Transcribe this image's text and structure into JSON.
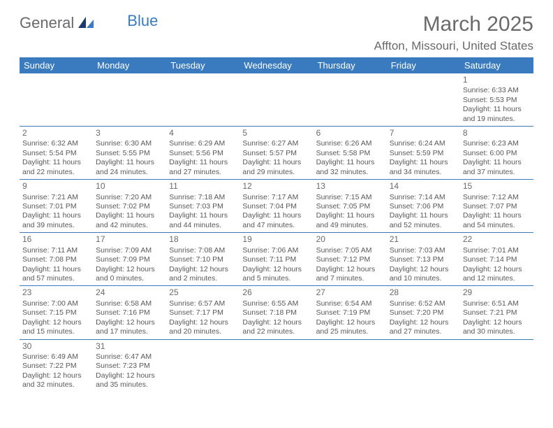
{
  "logo": {
    "part1": "General",
    "part2": "Blue"
  },
  "title": "March 2025",
  "location": "Affton, Missouri, United States",
  "weekdays": [
    "Sunday",
    "Monday",
    "Tuesday",
    "Wednesday",
    "Thursday",
    "Friday",
    "Saturday"
  ],
  "colors": {
    "header_bg": "#3a7bbf",
    "header_text": "#ffffff",
    "text": "#595959",
    "rule": "#3a7bbf"
  },
  "weeks": [
    [
      null,
      null,
      null,
      null,
      null,
      null,
      {
        "n": "1",
        "sr": "Sunrise: 6:33 AM",
        "ss": "Sunset: 5:53 PM",
        "d1": "Daylight: 11 hours",
        "d2": "and 19 minutes."
      }
    ],
    [
      {
        "n": "2",
        "sr": "Sunrise: 6:32 AM",
        "ss": "Sunset: 5:54 PM",
        "d1": "Daylight: 11 hours",
        "d2": "and 22 minutes."
      },
      {
        "n": "3",
        "sr": "Sunrise: 6:30 AM",
        "ss": "Sunset: 5:55 PM",
        "d1": "Daylight: 11 hours",
        "d2": "and 24 minutes."
      },
      {
        "n": "4",
        "sr": "Sunrise: 6:29 AM",
        "ss": "Sunset: 5:56 PM",
        "d1": "Daylight: 11 hours",
        "d2": "and 27 minutes."
      },
      {
        "n": "5",
        "sr": "Sunrise: 6:27 AM",
        "ss": "Sunset: 5:57 PM",
        "d1": "Daylight: 11 hours",
        "d2": "and 29 minutes."
      },
      {
        "n": "6",
        "sr": "Sunrise: 6:26 AM",
        "ss": "Sunset: 5:58 PM",
        "d1": "Daylight: 11 hours",
        "d2": "and 32 minutes."
      },
      {
        "n": "7",
        "sr": "Sunrise: 6:24 AM",
        "ss": "Sunset: 5:59 PM",
        "d1": "Daylight: 11 hours",
        "d2": "and 34 minutes."
      },
      {
        "n": "8",
        "sr": "Sunrise: 6:23 AM",
        "ss": "Sunset: 6:00 PM",
        "d1": "Daylight: 11 hours",
        "d2": "and 37 minutes."
      }
    ],
    [
      {
        "n": "9",
        "sr": "Sunrise: 7:21 AM",
        "ss": "Sunset: 7:01 PM",
        "d1": "Daylight: 11 hours",
        "d2": "and 39 minutes."
      },
      {
        "n": "10",
        "sr": "Sunrise: 7:20 AM",
        "ss": "Sunset: 7:02 PM",
        "d1": "Daylight: 11 hours",
        "d2": "and 42 minutes."
      },
      {
        "n": "11",
        "sr": "Sunrise: 7:18 AM",
        "ss": "Sunset: 7:03 PM",
        "d1": "Daylight: 11 hours",
        "d2": "and 44 minutes."
      },
      {
        "n": "12",
        "sr": "Sunrise: 7:17 AM",
        "ss": "Sunset: 7:04 PM",
        "d1": "Daylight: 11 hours",
        "d2": "and 47 minutes."
      },
      {
        "n": "13",
        "sr": "Sunrise: 7:15 AM",
        "ss": "Sunset: 7:05 PM",
        "d1": "Daylight: 11 hours",
        "d2": "and 49 minutes."
      },
      {
        "n": "14",
        "sr": "Sunrise: 7:14 AM",
        "ss": "Sunset: 7:06 PM",
        "d1": "Daylight: 11 hours",
        "d2": "and 52 minutes."
      },
      {
        "n": "15",
        "sr": "Sunrise: 7:12 AM",
        "ss": "Sunset: 7:07 PM",
        "d1": "Daylight: 11 hours",
        "d2": "and 54 minutes."
      }
    ],
    [
      {
        "n": "16",
        "sr": "Sunrise: 7:11 AM",
        "ss": "Sunset: 7:08 PM",
        "d1": "Daylight: 11 hours",
        "d2": "and 57 minutes."
      },
      {
        "n": "17",
        "sr": "Sunrise: 7:09 AM",
        "ss": "Sunset: 7:09 PM",
        "d1": "Daylight: 12 hours",
        "d2": "and 0 minutes."
      },
      {
        "n": "18",
        "sr": "Sunrise: 7:08 AM",
        "ss": "Sunset: 7:10 PM",
        "d1": "Daylight: 12 hours",
        "d2": "and 2 minutes."
      },
      {
        "n": "19",
        "sr": "Sunrise: 7:06 AM",
        "ss": "Sunset: 7:11 PM",
        "d1": "Daylight: 12 hours",
        "d2": "and 5 minutes."
      },
      {
        "n": "20",
        "sr": "Sunrise: 7:05 AM",
        "ss": "Sunset: 7:12 PM",
        "d1": "Daylight: 12 hours",
        "d2": "and 7 minutes."
      },
      {
        "n": "21",
        "sr": "Sunrise: 7:03 AM",
        "ss": "Sunset: 7:13 PM",
        "d1": "Daylight: 12 hours",
        "d2": "and 10 minutes."
      },
      {
        "n": "22",
        "sr": "Sunrise: 7:01 AM",
        "ss": "Sunset: 7:14 PM",
        "d1": "Daylight: 12 hours",
        "d2": "and 12 minutes."
      }
    ],
    [
      {
        "n": "23",
        "sr": "Sunrise: 7:00 AM",
        "ss": "Sunset: 7:15 PM",
        "d1": "Daylight: 12 hours",
        "d2": "and 15 minutes."
      },
      {
        "n": "24",
        "sr": "Sunrise: 6:58 AM",
        "ss": "Sunset: 7:16 PM",
        "d1": "Daylight: 12 hours",
        "d2": "and 17 minutes."
      },
      {
        "n": "25",
        "sr": "Sunrise: 6:57 AM",
        "ss": "Sunset: 7:17 PM",
        "d1": "Daylight: 12 hours",
        "d2": "and 20 minutes."
      },
      {
        "n": "26",
        "sr": "Sunrise: 6:55 AM",
        "ss": "Sunset: 7:18 PM",
        "d1": "Daylight: 12 hours",
        "d2": "and 22 minutes."
      },
      {
        "n": "27",
        "sr": "Sunrise: 6:54 AM",
        "ss": "Sunset: 7:19 PM",
        "d1": "Daylight: 12 hours",
        "d2": "and 25 minutes."
      },
      {
        "n": "28",
        "sr": "Sunrise: 6:52 AM",
        "ss": "Sunset: 7:20 PM",
        "d1": "Daylight: 12 hours",
        "d2": "and 27 minutes."
      },
      {
        "n": "29",
        "sr": "Sunrise: 6:51 AM",
        "ss": "Sunset: 7:21 PM",
        "d1": "Daylight: 12 hours",
        "d2": "and 30 minutes."
      }
    ],
    [
      {
        "n": "30",
        "sr": "Sunrise: 6:49 AM",
        "ss": "Sunset: 7:22 PM",
        "d1": "Daylight: 12 hours",
        "d2": "and 32 minutes."
      },
      {
        "n": "31",
        "sr": "Sunrise: 6:47 AM",
        "ss": "Sunset: 7:23 PM",
        "d1": "Daylight: 12 hours",
        "d2": "and 35 minutes."
      },
      null,
      null,
      null,
      null,
      null
    ]
  ]
}
